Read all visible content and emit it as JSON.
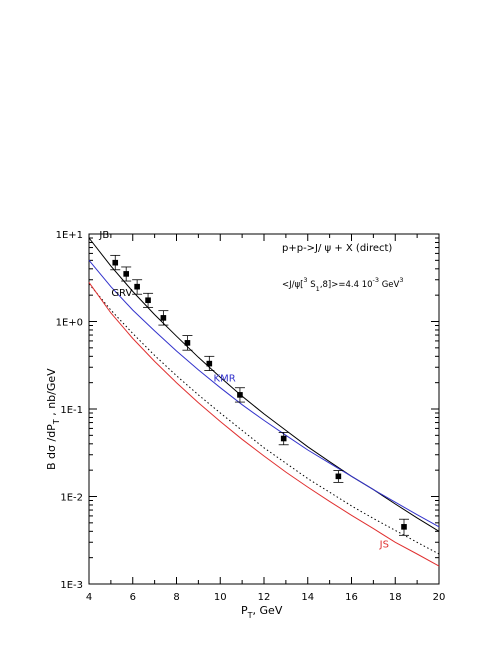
{
  "chart_data": {
    "type": "scatter",
    "xlabel": {
      "main": "P",
      "sub": "T",
      "tail": ", GeV"
    },
    "ylabel": {
      "main": "B  dσ /dP",
      "sub": "T",
      "tail": "  , nb/GeV"
    },
    "xlim": [
      4,
      20
    ],
    "ylim": [
      0.001,
      10
    ],
    "yscale": "log",
    "xticks": [
      4,
      6,
      8,
      10,
      12,
      14,
      16,
      18,
      20
    ],
    "xtick_labels": [
      "4",
      "6",
      "8",
      "10",
      "12",
      "14",
      "16",
      "18",
      "20"
    ],
    "yticks": [
      0.001,
      0.01,
      0.1,
      1,
      10
    ],
    "ytick_labels": [
      "1E-3",
      "1E-2",
      "1E-1",
      "1E+0",
      "1E+1"
    ],
    "annotations": {
      "reaction": "p+p->J/ ψ  + X  (direct)",
      "matrix_pre": "<J/ψ[",
      "matrix_sup": "3",
      "matrix_mid": " S",
      "matrix_sub": "1",
      "matrix_post": ",8]>=4.4 10",
      "matrix_exp": "-3",
      "matrix_unit": " GeV",
      "matrix_unit_exp": "3"
    },
    "series": [
      {
        "label": "JB",
        "color": "#000000",
        "style": "solid",
        "x": [
          4,
          5,
          6,
          7,
          8,
          9,
          10,
          11,
          12,
          13,
          14,
          15,
          16,
          17,
          18,
          19,
          20
        ],
        "y": [
          9.0,
          4.3,
          2.2,
          1.2,
          0.68,
          0.39,
          0.23,
          0.14,
          0.088,
          0.057,
          0.037,
          0.025,
          0.017,
          0.012,
          0.0082,
          0.0057,
          0.004
        ]
      },
      {
        "label": "GRV",
        "color": "#000000",
        "style": "dotted",
        "x": [
          4,
          5,
          6,
          7,
          8,
          9,
          10,
          11,
          12,
          13,
          14,
          15,
          16,
          17,
          18,
          19,
          20
        ],
        "y": [
          2.7,
          1.35,
          0.73,
          0.41,
          0.24,
          0.145,
          0.09,
          0.057,
          0.036,
          0.024,
          0.016,
          0.0112,
          0.0078,
          0.0056,
          0.0041,
          0.003,
          0.0022
        ]
      },
      {
        "label": "KMR",
        "color": "#3333cc",
        "style": "solid",
        "x": [
          4,
          5,
          6,
          7,
          8,
          9,
          10,
          11,
          12,
          13,
          14,
          15,
          16,
          17,
          18,
          19,
          20
        ],
        "y": [
          5.0,
          2.5,
          1.35,
          0.78,
          0.46,
          0.28,
          0.175,
          0.112,
          0.074,
          0.05,
          0.034,
          0.024,
          0.017,
          0.012,
          0.0086,
          0.0062,
          0.0045
        ]
      },
      {
        "label": "JS",
        "color": "#e03030",
        "style": "solid",
        "x": [
          4,
          5,
          6,
          7,
          8,
          9,
          10,
          11,
          12,
          13,
          14,
          15,
          16,
          17,
          18,
          19,
          20
        ],
        "y": [
          2.8,
          1.25,
          0.64,
          0.35,
          0.2,
          0.118,
          0.072,
          0.045,
          0.029,
          0.019,
          0.0128,
          0.0088,
          0.0061,
          0.0043,
          0.003,
          0.0022,
          0.0016
        ]
      }
    ],
    "data_points": {
      "x": [
        5.2,
        5.7,
        6.2,
        6.7,
        7.4,
        8.5,
        9.5,
        10.9,
        12.9,
        15.4,
        18.4
      ],
      "y": [
        4.7,
        3.5,
        2.5,
        1.75,
        1.1,
        0.57,
        0.33,
        0.145,
        0.046,
        0.017,
        0.0045
      ],
      "y_low": [
        3.9,
        2.9,
        2.05,
        1.45,
        0.91,
        0.47,
        0.275,
        0.12,
        0.039,
        0.0145,
        0.0036
      ],
      "y_high": [
        5.7,
        4.2,
        3.0,
        2.1,
        1.33,
        0.69,
        0.4,
        0.175,
        0.054,
        0.0198,
        0.0055
      ]
    }
  }
}
